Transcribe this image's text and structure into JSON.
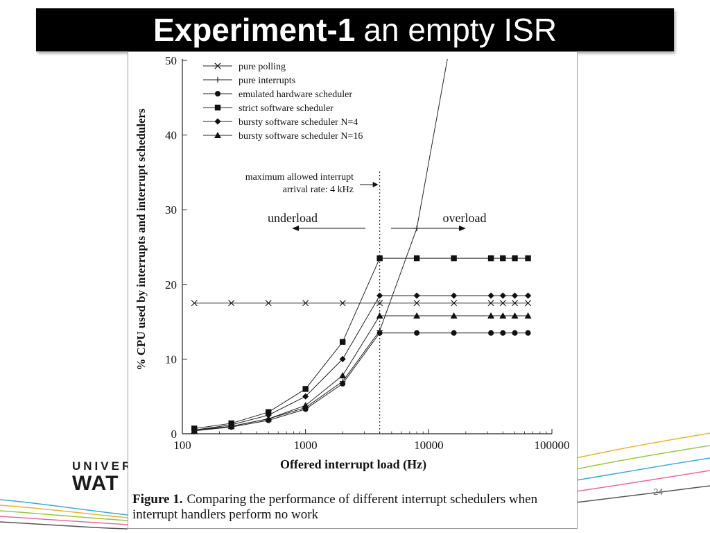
{
  "slide": {
    "title_bold": "Experiment-1",
    "title_rest": "an empty ISR",
    "page_number": "24",
    "logo_line1": "UNIVER",
    "logo_line2": "WAT"
  },
  "figure": {
    "caption_label": "Figure 1.",
    "caption_text": "Comparing the performance of different interrupt schedulers when interrupt handlers perform no work"
  },
  "chart_data": {
    "type": "line",
    "xlabel": "Offered interrupt load (Hz)",
    "ylabel": "% CPU used by interrupts and interrupt schedulers",
    "x_scale": "log",
    "xlim": [
      100,
      100000
    ],
    "ylim": [
      0,
      50
    ],
    "x_ticks": [
      "100",
      "1000",
      "10000",
      "100000"
    ],
    "y_ticks": [
      "0",
      "10",
      "20",
      "30",
      "40",
      "50"
    ],
    "grid": false,
    "legend_position": "top-left",
    "annotations": {
      "threshold_x": 4000,
      "threshold_label_line1": "maximum allowed interrupt",
      "threshold_label_line2": "arrival rate: 4 kHz",
      "underload_label": "underload",
      "overload_label": "overload"
    },
    "series": [
      {
        "name": "pure polling",
        "marker": "x",
        "x": [
          125,
          250,
          500,
          1000,
          2000,
          4000,
          8000,
          16000,
          32000,
          40000,
          50000,
          64000
        ],
        "y": [
          17.5,
          17.5,
          17.5,
          17.5,
          17.5,
          17.5,
          17.5,
          17.5,
          17.5,
          17.5,
          17.5,
          17.5
        ]
      },
      {
        "name": "pure interrupts",
        "marker": "plus",
        "x": [
          125,
          250,
          500,
          1000,
          2000,
          4000,
          8000,
          16000
        ],
        "y": [
          0.5,
          1.0,
          2.0,
          3.5,
          7.0,
          13.8,
          27.5,
          55
        ]
      },
      {
        "name": "emulated hardware scheduler",
        "marker": "circle",
        "x": [
          125,
          250,
          500,
          1000,
          2000,
          4000,
          8000,
          16000,
          32000,
          40000,
          50000,
          64000
        ],
        "y": [
          0.4,
          0.9,
          1.8,
          3.3,
          6.7,
          13.5,
          13.5,
          13.5,
          13.5,
          13.5,
          13.5,
          13.5
        ]
      },
      {
        "name": "strict software scheduler",
        "marker": "square",
        "x": [
          125,
          250,
          500,
          1000,
          2000,
          4000,
          8000,
          16000,
          32000,
          40000,
          50000,
          64000
        ],
        "y": [
          0.7,
          1.4,
          2.9,
          6.0,
          12.3,
          23.5,
          23.5,
          23.5,
          23.5,
          23.5,
          23.5,
          23.5
        ]
      },
      {
        "name": "bursty software scheduler N=4",
        "marker": "diamond",
        "x": [
          125,
          250,
          500,
          1000,
          2000,
          4000,
          8000,
          16000,
          32000,
          40000,
          50000,
          64000
        ],
        "y": [
          0.5,
          1.2,
          2.5,
          5.0,
          10.0,
          18.5,
          18.5,
          18.5,
          18.5,
          18.5,
          18.5,
          18.5
        ]
      },
      {
        "name": "bursty software scheduler N=16",
        "marker": "triangle",
        "x": [
          125,
          250,
          500,
          1000,
          2000,
          4000,
          8000,
          16000,
          32000,
          40000,
          50000,
          64000
        ],
        "y": [
          0.4,
          1.0,
          2.0,
          3.8,
          7.8,
          15.8,
          15.8,
          15.8,
          15.8,
          15.8,
          15.8,
          15.8
        ]
      }
    ]
  }
}
